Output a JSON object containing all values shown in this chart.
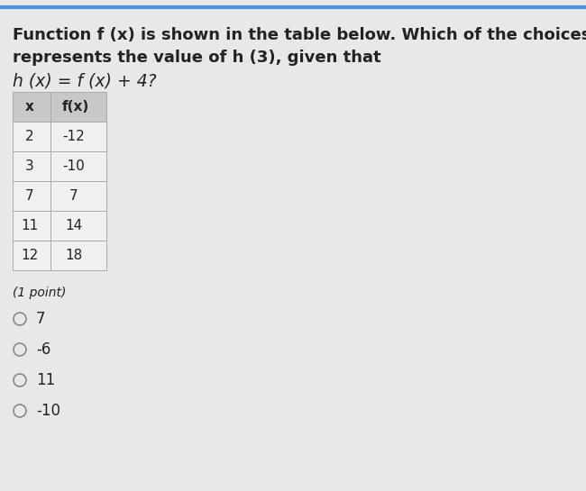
{
  "title_line1": "Function f (x) is shown in the table below. Which of the choices",
  "title_line2": "represents the value of h (3), given that",
  "title_line3": "h (x) = f (x) + 4?",
  "table_headers": [
    "x",
    "f(x)"
  ],
  "table_data": [
    [
      "2",
      "-12"
    ],
    [
      "3",
      "-10"
    ],
    [
      "7",
      "7"
    ],
    [
      "11",
      "14"
    ],
    [
      "12",
      "18"
    ]
  ],
  "point_label": "(1 point)",
  "choices": [
    "7",
    "-6",
    "11",
    "-10"
  ],
  "bg_color": "#e8e8e8",
  "table_bg": "#f0f0f0",
  "header_bg": "#c8c8c8",
  "text_color": "#222222",
  "border_color": "#aaaaaa",
  "circle_color": "#888888"
}
